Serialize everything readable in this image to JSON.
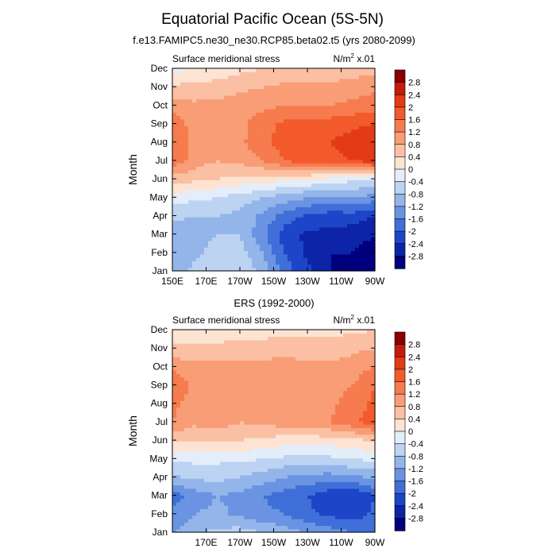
{
  "page": {
    "title": "Equatorial Pacific Ocean (5S-5N)"
  },
  "colorbar": {
    "labels": [
      "2.8",
      "2.4",
      "2",
      "1.6",
      "1.2",
      "0.8",
      "0.4",
      "0",
      "-0.4",
      "-0.8",
      "-1.2",
      "-1.6",
      "-2",
      "-2.4",
      "-2.8"
    ],
    "colors": [
      "#8b0000",
      "#c41b0c",
      "#e33b16",
      "#f25a2c",
      "#f67b4e",
      "#f89d76",
      "#fbc0a3",
      "#fde3d3",
      "#e4eefa",
      "#bcd3f2",
      "#93b5ea",
      "#6a94e2",
      "#3f6fd8",
      "#1d45c8",
      "#0d23a8",
      "#00007f"
    ]
  },
  "chart_data": [
    {
      "type": "heatmap",
      "subtitle": "f.e13.FAMIPC5.ne30_ne30.RCP85.beta02.t5 (yrs 2080-2099)",
      "panel_left_label": "Surface meridional stress",
      "units_label": "N/m",
      "units_sup": "2",
      "units_scale": "x.01",
      "xlabel": "",
      "ylabel": "Month",
      "x_ticks": [
        "150E",
        "170E",
        "170W",
        "150W",
        "130W",
        "110W",
        "90W"
      ],
      "y_ticks": [
        "Jan",
        "Feb",
        "Mar",
        "Apr",
        "May",
        "Jun",
        "Jul",
        "Aug",
        "Sep",
        "Oct",
        "Nov",
        "Dec"
      ],
      "z_range": [
        -3.0,
        3.0
      ],
      "z_grid": [
        [
          -1.0,
          -0.7,
          -0.5,
          -0.5,
          -0.9,
          -1.8,
          -2.3,
          -2.8,
          -2.9,
          -3.0
        ],
        [
          -1.1,
          -0.9,
          -0.6,
          -0.6,
          -1.2,
          -2.0,
          -2.5,
          -2.8,
          -2.8,
          -3.0
        ],
        [
          -1.1,
          -1.0,
          -0.8,
          -0.8,
          -1.5,
          -2.2,
          -2.5,
          -2.5,
          -2.6,
          -2.8
        ],
        [
          -0.7,
          -0.8,
          -0.8,
          -0.9,
          -1.3,
          -1.8,
          -2.1,
          -2.2,
          -2.2,
          -2.4
        ],
        [
          -0.2,
          -0.3,
          -0.4,
          -0.6,
          -0.8,
          -1.0,
          -1.2,
          -1.3,
          -1.2,
          -1.4
        ],
        [
          0.6,
          0.5,
          0.4,
          0.3,
          0.2,
          0.1,
          0.0,
          -0.1,
          -0.3,
          -0.4
        ],
        [
          1.5,
          1.0,
          0.8,
          0.9,
          1.2,
          1.6,
          1.8,
          1.9,
          2.0,
          2.2
        ],
        [
          1.6,
          1.1,
          0.9,
          1.1,
          1.5,
          1.8,
          1.9,
          2.0,
          2.2,
          2.4
        ],
        [
          1.5,
          1.0,
          0.9,
          1.1,
          1.4,
          1.7,
          1.8,
          1.8,
          1.9,
          2.0
        ],
        [
          1.0,
          0.9,
          0.9,
          1.0,
          1.1,
          1.2,
          1.2,
          1.2,
          1.3,
          1.4
        ],
        [
          0.5,
          0.5,
          0.6,
          0.7,
          0.8,
          0.9,
          0.9,
          0.9,
          1.0,
          1.1
        ],
        [
          -0.1,
          0.0,
          0.1,
          0.3,
          0.4,
          0.5,
          0.5,
          0.5,
          0.6,
          0.6
        ]
      ]
    },
    {
      "type": "heatmap",
      "subtitle": "ERS (1992-2000)",
      "panel_left_label": "Surface meridional stress",
      "units_label": "N/m",
      "units_sup": "2",
      "units_scale": "x.01",
      "xlabel": "",
      "ylabel": "Month",
      "x_ticks": [
        "",
        "170E",
        "170W",
        "150W",
        "130W",
        "110W",
        "90W"
      ],
      "y_ticks": [
        "Jan",
        "Feb",
        "Mar",
        "Apr",
        "May",
        "Jun",
        "Jul",
        "Aug",
        "Sep",
        "Oct",
        "Nov",
        "Dec"
      ],
      "z_range": [
        -3.0,
        3.0
      ],
      "z_grid": [
        [
          -1.2,
          -0.9,
          -0.7,
          -0.6,
          -0.8,
          -1.0,
          -1.2,
          -1.4,
          -1.6,
          -1.6
        ],
        [
          -1.5,
          -1.2,
          -1.1,
          -1.3,
          -1.5,
          -1.6,
          -1.9,
          -2.1,
          -2.2,
          -1.9
        ],
        [
          -1.8,
          -1.4,
          -1.2,
          -1.3,
          -1.6,
          -1.8,
          -2.0,
          -2.3,
          -2.4,
          -2.0
        ],
        [
          -0.9,
          -0.7,
          -0.7,
          -0.8,
          -1.0,
          -1.2,
          -1.3,
          -1.4,
          -1.3,
          -1.1
        ],
        [
          -0.3,
          -0.3,
          -0.3,
          -0.3,
          -0.4,
          -0.5,
          -0.6,
          -0.5,
          -0.4,
          -0.3
        ],
        [
          0.5,
          0.4,
          0.5,
          0.4,
          0.3,
          0.2,
          0.2,
          0.2,
          0.3,
          0.4
        ],
        [
          1.2,
          0.9,
          1.0,
          0.8,
          0.9,
          1.0,
          1.0,
          1.2,
          1.5,
          1.8
        ],
        [
          1.3,
          1.0,
          1.1,
          0.9,
          1.0,
          1.1,
          1.0,
          1.1,
          1.4,
          1.7
        ],
        [
          1.6,
          1.1,
          1.2,
          1.0,
          1.2,
          1.1,
          1.0,
          1.0,
          1.2,
          1.6
        ],
        [
          1.1,
          0.9,
          1.0,
          0.9,
          1.0,
          1.0,
          0.9,
          0.9,
          1.0,
          1.2
        ],
        [
          0.5,
          0.5,
          0.5,
          0.5,
          0.5,
          0.6,
          0.6,
          0.6,
          0.7,
          0.8
        ],
        [
          0.1,
          0.2,
          0.2,
          0.3,
          0.3,
          0.3,
          0.3,
          0.3,
          0.3,
          0.4
        ]
      ]
    }
  ]
}
